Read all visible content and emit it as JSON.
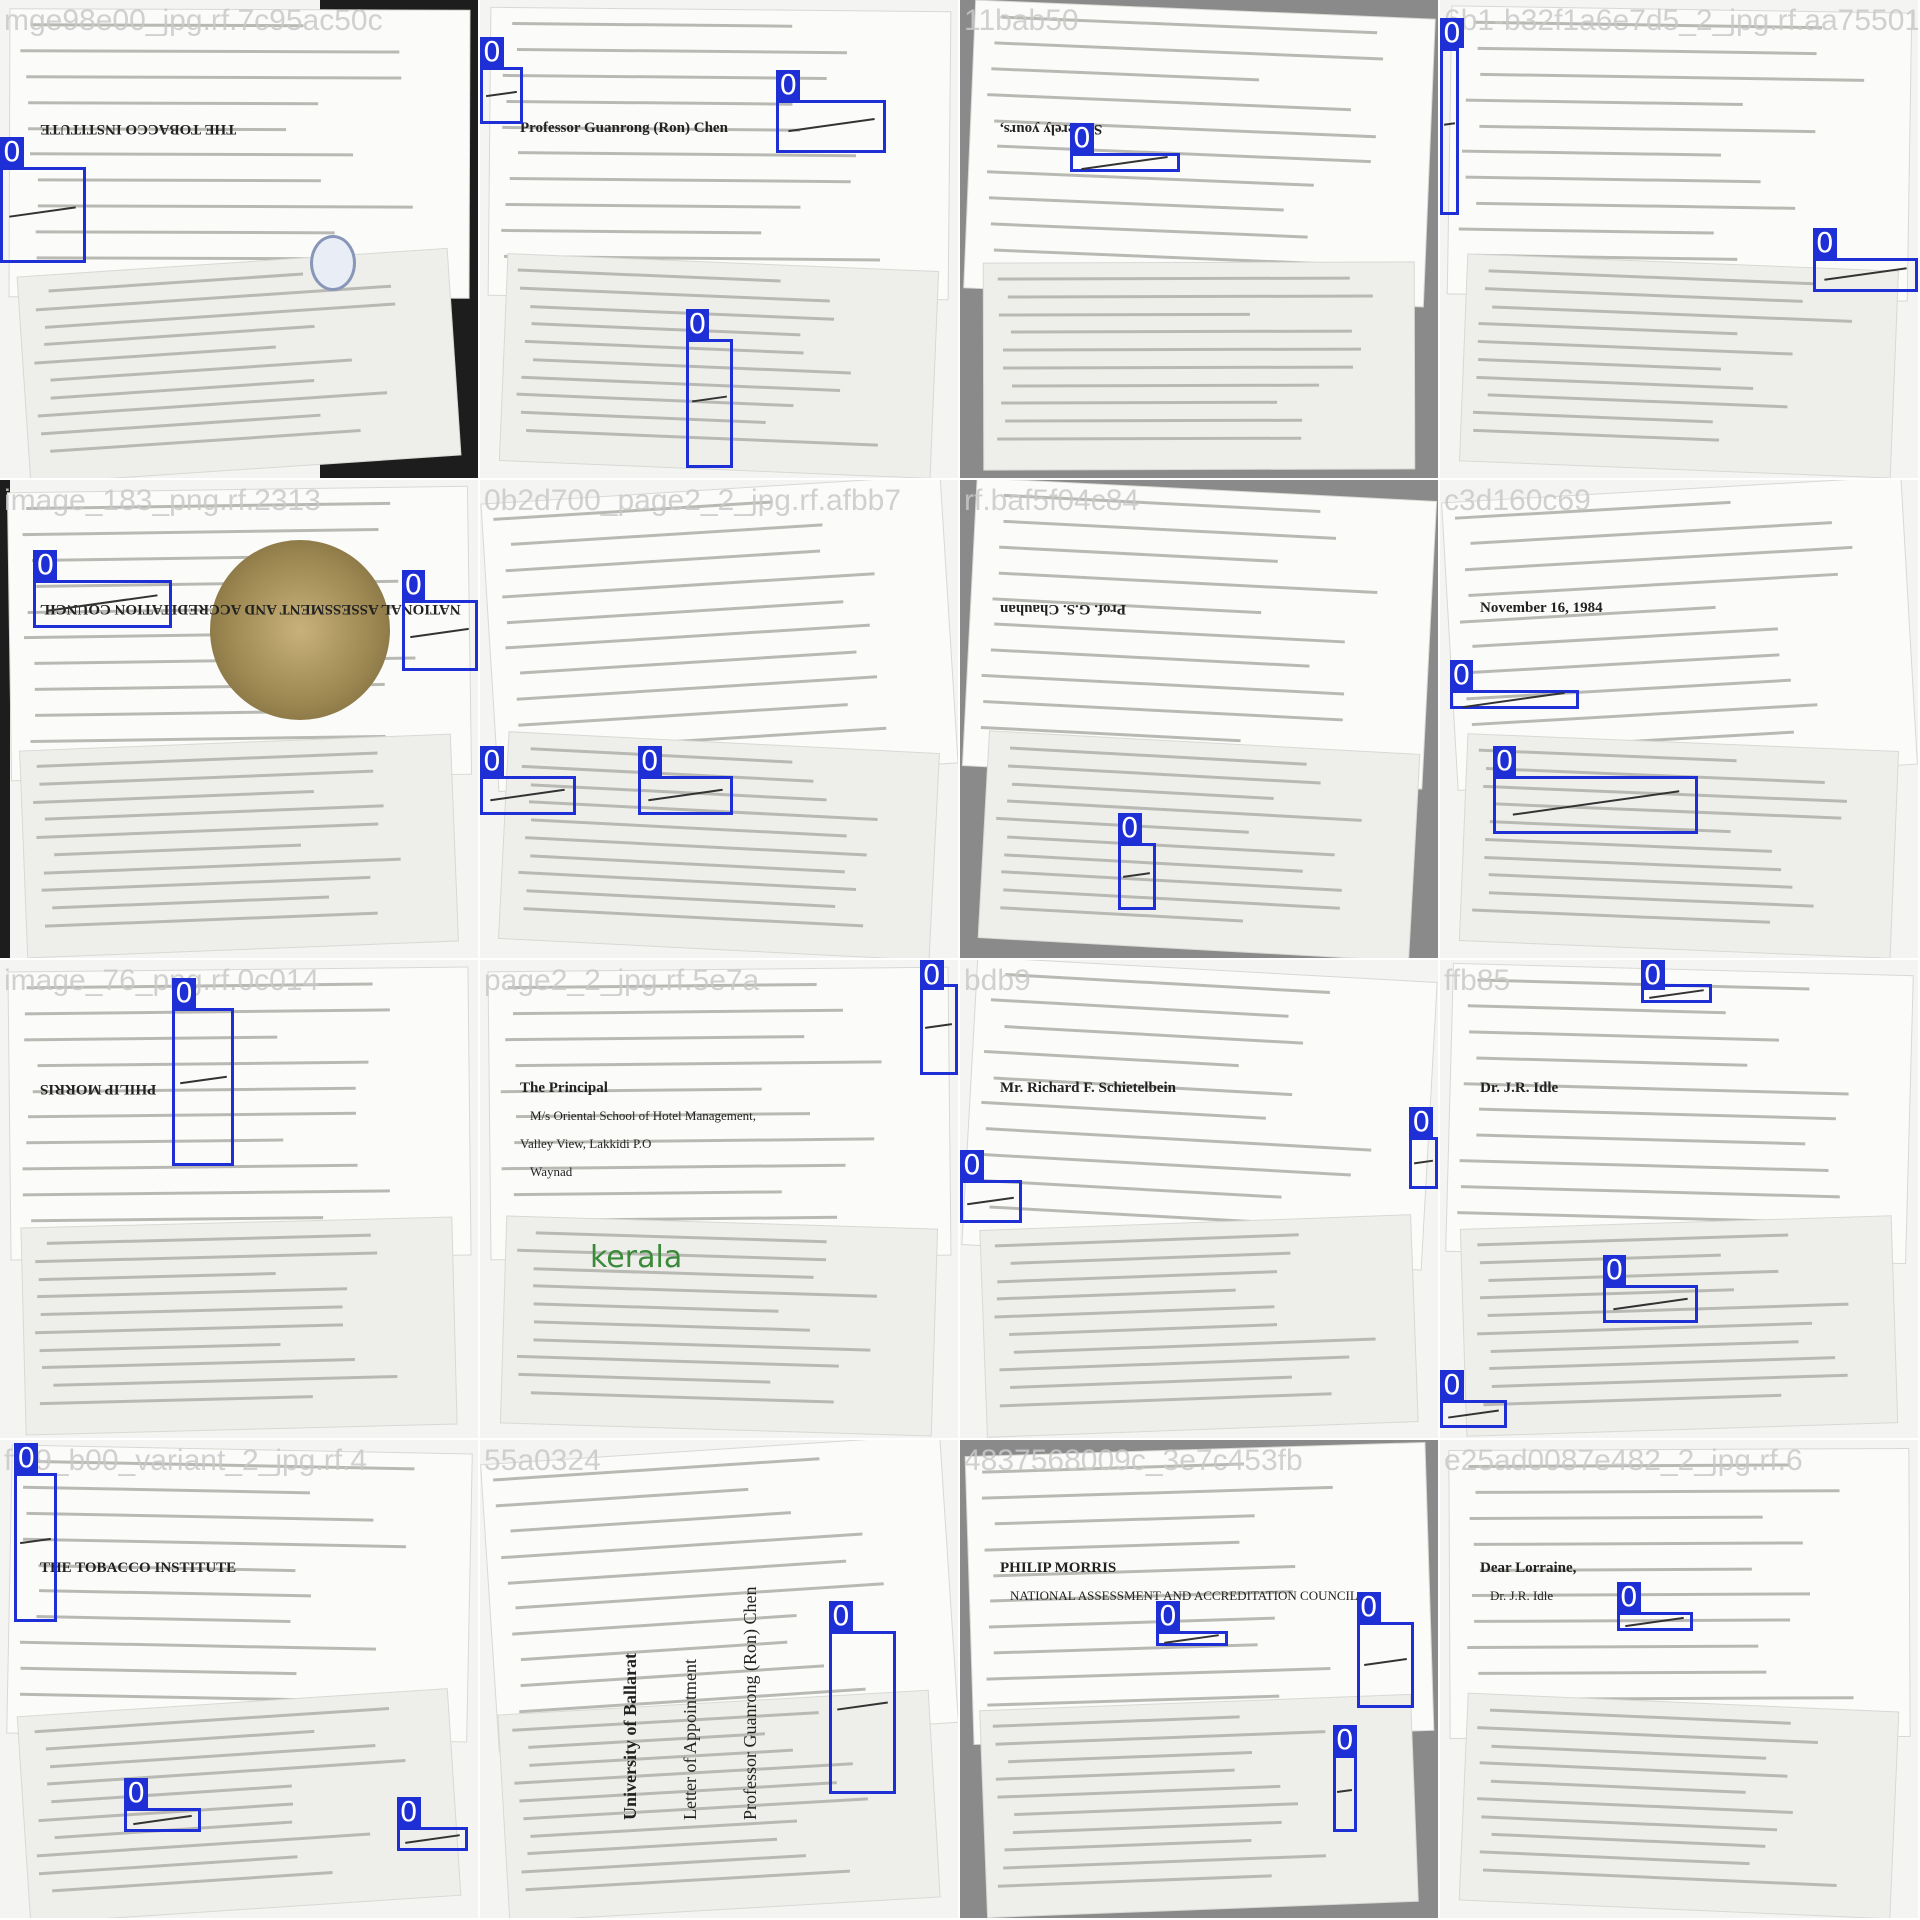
{
  "tiles": [
    {
      "title": "mge98e00_jpg.rf.7c95ac50c",
      "label": "0",
      "texts": [
        {
          "t": "THE TOBACCO INSTITUTE",
          "flip": true
        }
      ],
      "boxes": [
        [
          0.0,
          0.35,
          0.18,
          0.55
        ]
      ]
    },
    {
      "title": "",
      "label": "0",
      "texts": [
        {
          "t": "Professor Guanrong (Ron) Chen",
          "flip": false
        }
      ],
      "boxes": [
        [
          0.0,
          0.14,
          0.09,
          0.26
        ],
        [
          0.62,
          0.21,
          0.85,
          0.32
        ],
        [
          0.43,
          0.71,
          0.53,
          0.98
        ]
      ]
    },
    {
      "title": "11bab50",
      "label": "0",
      "texts": [
        {
          "t": "Sincerely yours,",
          "flip": true
        }
      ],
      "boxes": [
        [
          0.23,
          0.32,
          0.46,
          0.36
        ]
      ]
    },
    {
      "title": "6b1-b32f1a6e7d5_2_jpg.rf.aa75501",
      "label": "0",
      "texts": [],
      "boxes": [
        [
          0.0,
          0.1,
          0.04,
          0.45
        ],
        [
          0.78,
          0.54,
          1.0,
          0.61
        ]
      ]
    },
    {
      "title": "image_183_png.rf.2313",
      "label": "0",
      "texts": [
        {
          "t": "NATIONAL ASSESSMENT AND ACCREDITATION COUNCIL",
          "flip": true
        }
      ],
      "boxes": [
        [
          0.07,
          0.21,
          0.36,
          0.31
        ],
        [
          0.84,
          0.25,
          1.0,
          0.4
        ]
      ]
    },
    {
      "title": "0b2d700_page2_2_jpg.rf.afbb7",
      "label": "0",
      "texts": [],
      "boxes": [
        [
          0.0,
          0.62,
          0.2,
          0.7
        ],
        [
          0.33,
          0.62,
          0.53,
          0.7
        ]
      ]
    },
    {
      "title": "rf.baf5f04c84",
      "label": "0",
      "texts": [
        {
          "t": "Prof. G.S. Chauhan",
          "flip": true
        }
      ],
      "boxes": [
        [
          0.33,
          0.76,
          0.41,
          0.9
        ]
      ]
    },
    {
      "title": "c3d160c69",
      "label": "0",
      "texts": [
        {
          "t": "November 16, 1984",
          "flip": false
        }
      ],
      "boxes": [
        [
          0.02,
          0.44,
          0.29,
          0.48
        ],
        [
          0.11,
          0.62,
          0.54,
          0.74
        ]
      ]
    },
    {
      "title": "image_76_png.rf.0c014",
      "label": "0",
      "texts": [
        {
          "t": "PHILIP MORRIS",
          "flip": true
        }
      ],
      "boxes": [
        [
          0.36,
          0.1,
          0.49,
          0.43
        ]
      ]
    },
    {
      "title": "page2_2_jpg.rf.5e7a",
      "label": "0",
      "texts": [
        {
          "t": "The Principal",
          "flip": false
        },
        {
          "t": "M/s Oriental School of Hotel Management,",
          "flip": false
        },
        {
          "t": "Valley View, Lakkidi P.O",
          "flip": false
        },
        {
          "t": "Waynad",
          "flip": false
        },
        {
          "t": "kerala",
          "flip": false
        }
      ],
      "boxes": [
        [
          0.92,
          0.05,
          1.0,
          0.24
        ]
      ]
    },
    {
      "title": "bdb9",
      "label": "0",
      "texts": [
        {
          "t": "Mr. Richard F. Schietelbein",
          "flip": false
        }
      ],
      "boxes": [
        [
          0.0,
          0.46,
          0.13,
          0.55
        ],
        [
          0.94,
          0.37,
          1.0,
          0.48
        ]
      ]
    },
    {
      "title": "ffb85",
      "label": "0",
      "texts": [
        {
          "t": "Dr. J.R. Idle",
          "flip": false
        }
      ],
      "boxes": [
        [
          0.42,
          0.05,
          0.57,
          0.09
        ],
        [
          0.34,
          0.68,
          0.54,
          0.76
        ],
        [
          0.0,
          0.92,
          0.14,
          0.98
        ]
      ]
    },
    {
      "title": "ffc9_b00_variant_2_jpg.rf.4",
      "label": "0",
      "texts": [
        {
          "t": "THE TOBACCO INSTITUTE",
          "flip": false
        }
      ],
      "boxes": [
        [
          0.03,
          0.07,
          0.12,
          0.38
        ],
        [
          0.26,
          0.77,
          0.42,
          0.82
        ],
        [
          0.83,
          0.81,
          0.98,
          0.86
        ]
      ]
    },
    {
      "title": "55a0324",
      "label": "0",
      "texts": [
        {
          "t": "University of Ballarat",
          "flip": false
        },
        {
          "t": "Letter of Appointment",
          "flip": false
        },
        {
          "t": "Professor Guanrong (Ron) Chen",
          "flip": false
        }
      ],
      "boxes": [
        [
          0.73,
          0.4,
          0.87,
          0.74
        ]
      ]
    },
    {
      "title": "4837568009c_3e7c453fb",
      "label": "0",
      "texts": [
        {
          "t": "PHILIP MORRIS",
          "flip": false
        },
        {
          "t": "NATIONAL ASSESSMENT AND ACCREDITATION COUNCIL",
          "flip": false
        }
      ],
      "boxes": [
        [
          0.41,
          0.4,
          0.56,
          0.43
        ],
        [
          0.83,
          0.38,
          0.95,
          0.56
        ],
        [
          0.78,
          0.66,
          0.83,
          0.82
        ]
      ]
    },
    {
      "title": "e25ad0087e482_2_jpg.rf.6",
      "label": "0",
      "texts": [
        {
          "t": "Dear Lorraine,",
          "flip": false
        },
        {
          "t": "Dr. J.R. Idle",
          "flip": false
        }
      ],
      "boxes": [
        [
          0.37,
          0.36,
          0.53,
          0.4
        ]
      ]
    }
  ]
}
